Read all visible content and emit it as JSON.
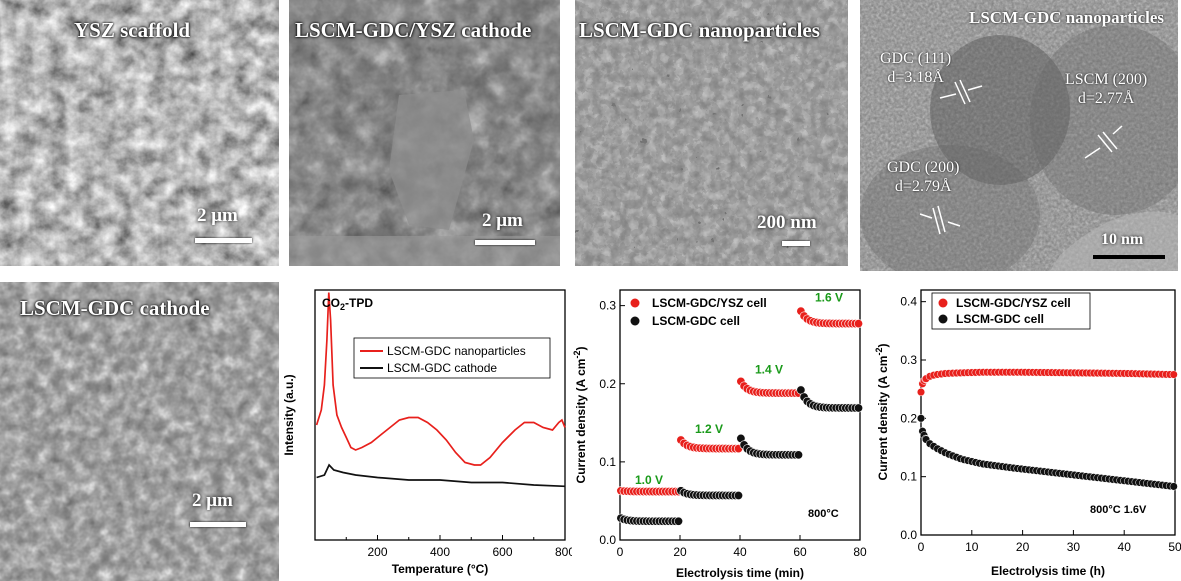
{
  "colors": {
    "red": "#e8201c",
    "black": "#111111",
    "green": "#1a9a1a"
  },
  "panels": {
    "ysz": {
      "label": "YSZ scaffold",
      "scale": "2 μm"
    },
    "cathode_cross": {
      "label": "LSCM-GDC/YSZ cathode",
      "scale": "2 μm"
    },
    "nano": {
      "label": "LSCM-GDC nanoparticles",
      "scale": "200 nm"
    },
    "tem": {
      "label": "LSCM-GDC nanoparticles",
      "scale": "10 nm",
      "notes": [
        {
          "phase": "GDC (111)",
          "d": "d=3.18Å"
        },
        {
          "phase": "LSCM (200)",
          "d": "d=2.77Å"
        },
        {
          "phase": "GDC (200)",
          "d": "d=2.79Å"
        }
      ]
    },
    "lscm_cathode": {
      "label": "LSCM-GDC cathode",
      "scale": "2 μm"
    }
  },
  "chart_data": [
    {
      "type": "line",
      "title_main": "CO",
      "title_sub": "2",
      "title_tail": "-TPD",
      "xlabel": "Temperature (",
      "xlabel_unit": "°C)",
      "ylabel": "Intensity (a.u.)",
      "xlim": [
        0,
        800
      ],
      "xticks": [
        "200",
        "400",
        "600",
        "800"
      ],
      "series": [
        {
          "name": "LSCM-GDC nanoparticles",
          "color": "#e8201c",
          "points": [
            [
              5,
              0.46
            ],
            [
              20,
              0.52
            ],
            [
              30,
              0.62
            ],
            [
              38,
              0.8
            ],
            [
              44,
              0.99
            ],
            [
              50,
              0.88
            ],
            [
              58,
              0.62
            ],
            [
              70,
              0.5
            ],
            [
              85,
              0.45
            ],
            [
              100,
              0.41
            ],
            [
              115,
              0.37
            ],
            [
              130,
              0.36
            ],
            [
              150,
              0.37
            ],
            [
              180,
              0.39
            ],
            [
              210,
              0.42
            ],
            [
              240,
              0.45
            ],
            [
              270,
              0.48
            ],
            [
              300,
              0.49
            ],
            [
              330,
              0.49
            ],
            [
              360,
              0.47
            ],
            [
              390,
              0.44
            ],
            [
              420,
              0.4
            ],
            [
              450,
              0.35
            ],
            [
              480,
              0.31
            ],
            [
              510,
              0.3
            ],
            [
              530,
              0.3
            ],
            [
              560,
              0.33
            ],
            [
              600,
              0.39
            ],
            [
              640,
              0.44
            ],
            [
              670,
              0.47
            ],
            [
              700,
              0.47
            ],
            [
              730,
              0.45
            ],
            [
              760,
              0.44
            ],
            [
              780,
              0.47
            ],
            [
              790,
              0.48
            ],
            [
              800,
              0.45
            ]
          ]
        },
        {
          "name": "LSCM-GDC cathode",
          "color": "#111111",
          "points": [
            [
              5,
              0.25
            ],
            [
              30,
              0.26
            ],
            [
              45,
              0.3
            ],
            [
              60,
              0.28
            ],
            [
              90,
              0.27
            ],
            [
              130,
              0.26
            ],
            [
              200,
              0.25
            ],
            [
              300,
              0.24
            ],
            [
              400,
              0.24
            ],
            [
              500,
              0.23
            ],
            [
              600,
              0.23
            ],
            [
              700,
              0.22
            ],
            [
              800,
              0.215
            ]
          ]
        }
      ]
    },
    {
      "type": "scatter",
      "xlabel": "Electrolysis time (min)",
      "ylabel_main": "Current density (A cm",
      "ylabel_sup": "-2",
      "ylabel_tail": ")",
      "xlim": [
        0,
        80
      ],
      "ylim": [
        0,
        0.32
      ],
      "xticks": [
        "0",
        "20",
        "40",
        "60",
        "80"
      ],
      "yticks": [
        "0.0",
        "0.1",
        "0.2",
        "0.3"
      ],
      "condition": "800°C",
      "voltages": [
        {
          "label": "1.0 V",
          "x": 5,
          "y": 0.072
        },
        {
          "label": "1.2 V",
          "x": 25,
          "y": 0.137
        },
        {
          "label": "1.4 V",
          "x": 45,
          "y": 0.213
        },
        {
          "label": "1.6 V",
          "x": 65,
          "y": 0.305
        }
      ],
      "series": [
        {
          "name": "LSCM-GDC/YSZ cell",
          "color": "#e8201c",
          "segments": [
            {
              "x0": 0.3,
              "x1": 19.5,
              "y0": 0.063,
              "y1": 0.062
            },
            {
              "x0": 20.3,
              "x1": 39.5,
              "y0": 0.128,
              "y1": 0.117
            },
            {
              "x0": 40.3,
              "x1": 59.5,
              "y0": 0.203,
              "y1": 0.188
            },
            {
              "x0": 60.3,
              "x1": 79.5,
              "y0": 0.293,
              "y1": 0.277
            }
          ]
        },
        {
          "name": "LSCM-GDC cell",
          "color": "#111111",
          "segments": [
            {
              "x0": 0.3,
              "x1": 19.5,
              "y0": 0.028,
              "y1": 0.024
            },
            {
              "x0": 20.3,
              "x1": 39.5,
              "y0": 0.063,
              "y1": 0.057
            },
            {
              "x0": 40.3,
              "x1": 59.5,
              "y0": 0.13,
              "y1": 0.109
            },
            {
              "x0": 60.3,
              "x1": 79.5,
              "y0": 0.192,
              "y1": 0.169
            }
          ]
        }
      ]
    },
    {
      "type": "scatter",
      "xlabel": "Electrolysis time (h)",
      "ylabel_main": "Current density (A cm",
      "ylabel_sup": "-2",
      "ylabel_tail": ")",
      "xlim": [
        0,
        50
      ],
      "ylim": [
        0,
        0.42
      ],
      "xticks": [
        "0",
        "10",
        "20",
        "30",
        "40",
        "50"
      ],
      "yticks": [
        "0.0",
        "0.1",
        "0.2",
        "0.3",
        "0.4"
      ],
      "condition": "800°C  1.6V",
      "series": [
        {
          "name": "LSCM-GDC/YSZ cell",
          "color": "#e8201c",
          "points": [
            [
              0,
              0.245
            ],
            [
              0.25,
              0.258
            ],
            [
              0.5,
              0.264
            ],
            [
              1,
              0.268
            ],
            [
              1.5,
              0.271
            ],
            [
              2,
              0.273
            ],
            [
              3,
              0.275
            ],
            [
              5,
              0.277
            ],
            [
              8,
              0.278
            ],
            [
              12,
              0.279
            ],
            [
              20,
              0.279
            ],
            [
              30,
              0.278
            ],
            [
              40,
              0.277
            ],
            [
              50,
              0.275
            ]
          ]
        },
        {
          "name": "LSCM-GDC cell",
          "color": "#111111",
          "points": [
            [
              0,
              0.2
            ],
            [
              0.3,
              0.178
            ],
            [
              0.8,
              0.166
            ],
            [
              1.5,
              0.158
            ],
            [
              3,
              0.149
            ],
            [
              5,
              0.14
            ],
            [
              8,
              0.13
            ],
            [
              12,
              0.122
            ],
            [
              18,
              0.115
            ],
            [
              25,
              0.108
            ],
            [
              30,
              0.103
            ],
            [
              35,
              0.098
            ],
            [
              40,
              0.093
            ],
            [
              45,
              0.088
            ],
            [
              50,
              0.083
            ]
          ]
        }
      ]
    }
  ]
}
